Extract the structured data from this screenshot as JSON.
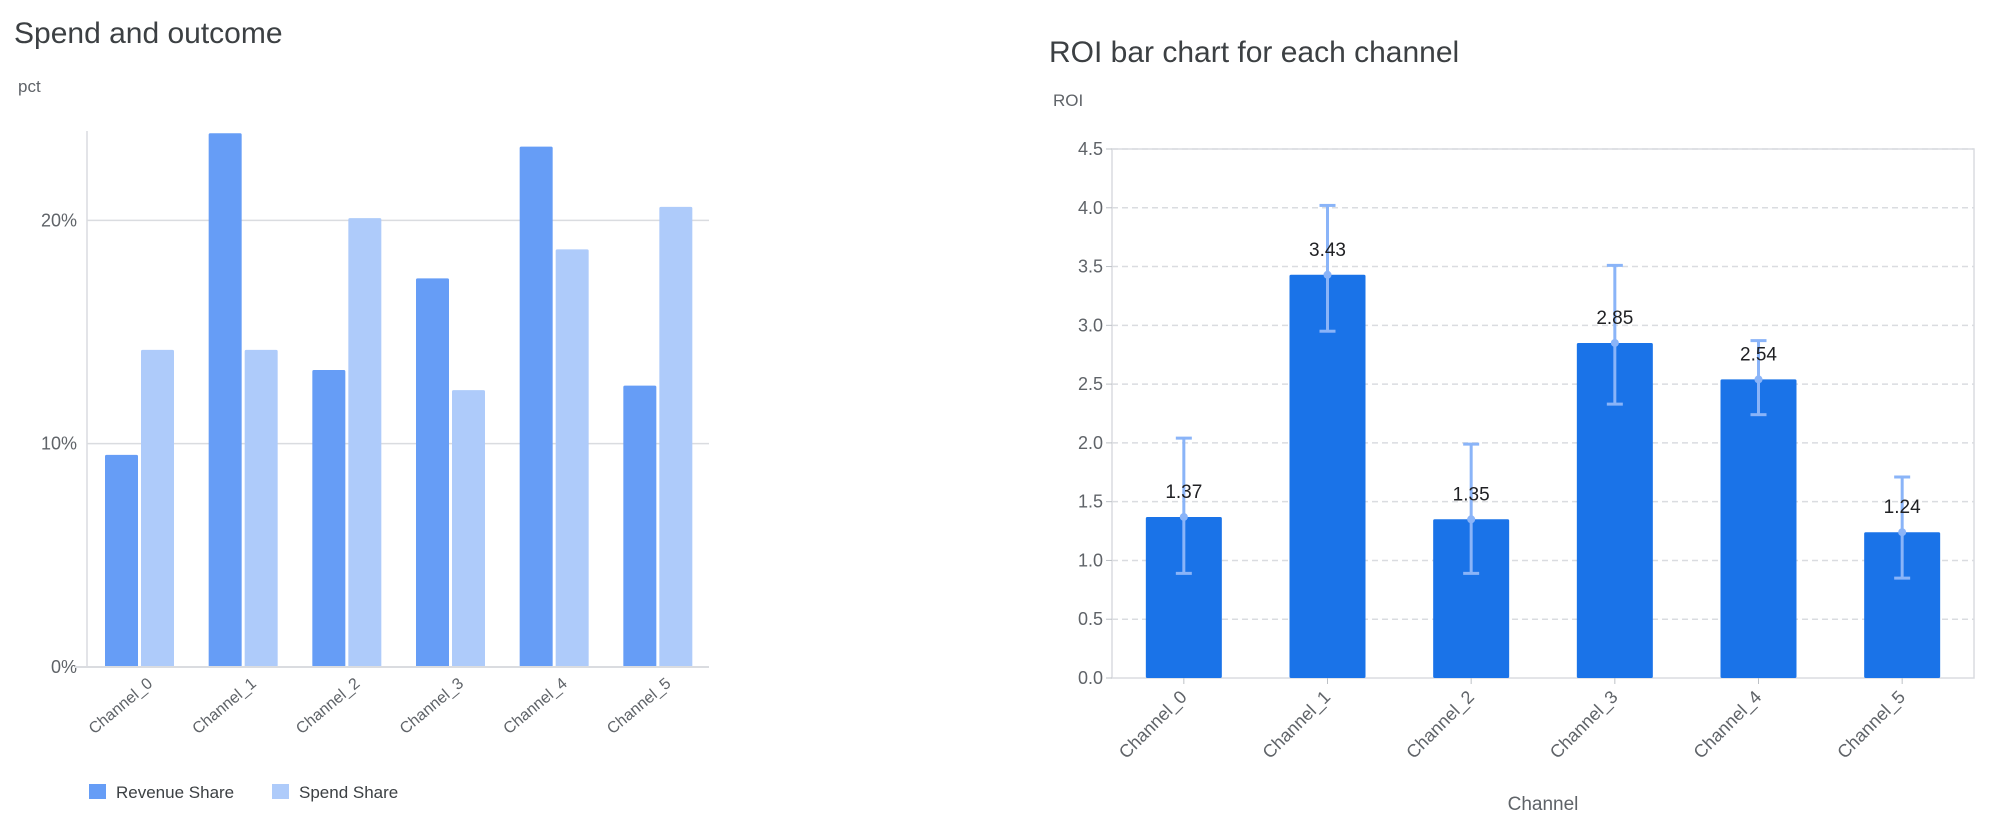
{
  "chart_data": [
    {
      "type": "bar",
      "title": "Spend and outcome",
      "ylabel": "pct",
      "xlabel": "",
      "categories": [
        "Channel_0",
        "Channel_1",
        "Channel_2",
        "Channel_3",
        "Channel_4",
        "Channel_5"
      ],
      "series": [
        {
          "name": "Revenue Share",
          "values": [
            9.5,
            23.9,
            13.3,
            17.4,
            23.3,
            12.6
          ],
          "color": "#669df6"
        },
        {
          "name": "Spend Share",
          "values": [
            14.2,
            14.2,
            20.1,
            12.4,
            18.7,
            20.6
          ],
          "color": "#aecbfa"
        }
      ],
      "yticks": [
        0,
        10,
        20
      ],
      "ytick_labels": [
        "0%",
        "10%",
        "20%"
      ],
      "ylim": [
        0,
        24
      ],
      "grid": true,
      "legend": "bottom-left"
    },
    {
      "type": "bar",
      "title": "ROI bar chart for each channel",
      "ylabel": "ROI",
      "xlabel": "Channel",
      "categories": [
        "Channel_0",
        "Channel_1",
        "Channel_2",
        "Channel_3",
        "Channel_4",
        "Channel_5"
      ],
      "values": [
        1.37,
        3.43,
        1.35,
        2.85,
        2.54,
        1.24
      ],
      "data_labels": [
        "1.37",
        "3.43",
        "1.35",
        "2.85",
        "2.54",
        "1.24"
      ],
      "error_low": [
        0.89,
        2.95,
        0.89,
        2.33,
        2.24,
        0.85
      ],
      "error_high": [
        2.04,
        4.02,
        1.99,
        3.51,
        2.87,
        1.71
      ],
      "yticks": [
        0,
        0.5,
        1,
        1.5,
        2,
        2.5,
        3,
        3.5,
        4,
        4.5
      ],
      "ytick_labels": [
        "0.0",
        "0.5",
        "1.0",
        "1.5",
        "2.0",
        "2.5",
        "3.0",
        "3.5",
        "4.0",
        "4.5"
      ],
      "ylim": [
        0,
        4.5
      ],
      "grid": "dashed",
      "bar_color": "#1a73e8",
      "error_color": "#8ab4f8"
    }
  ]
}
